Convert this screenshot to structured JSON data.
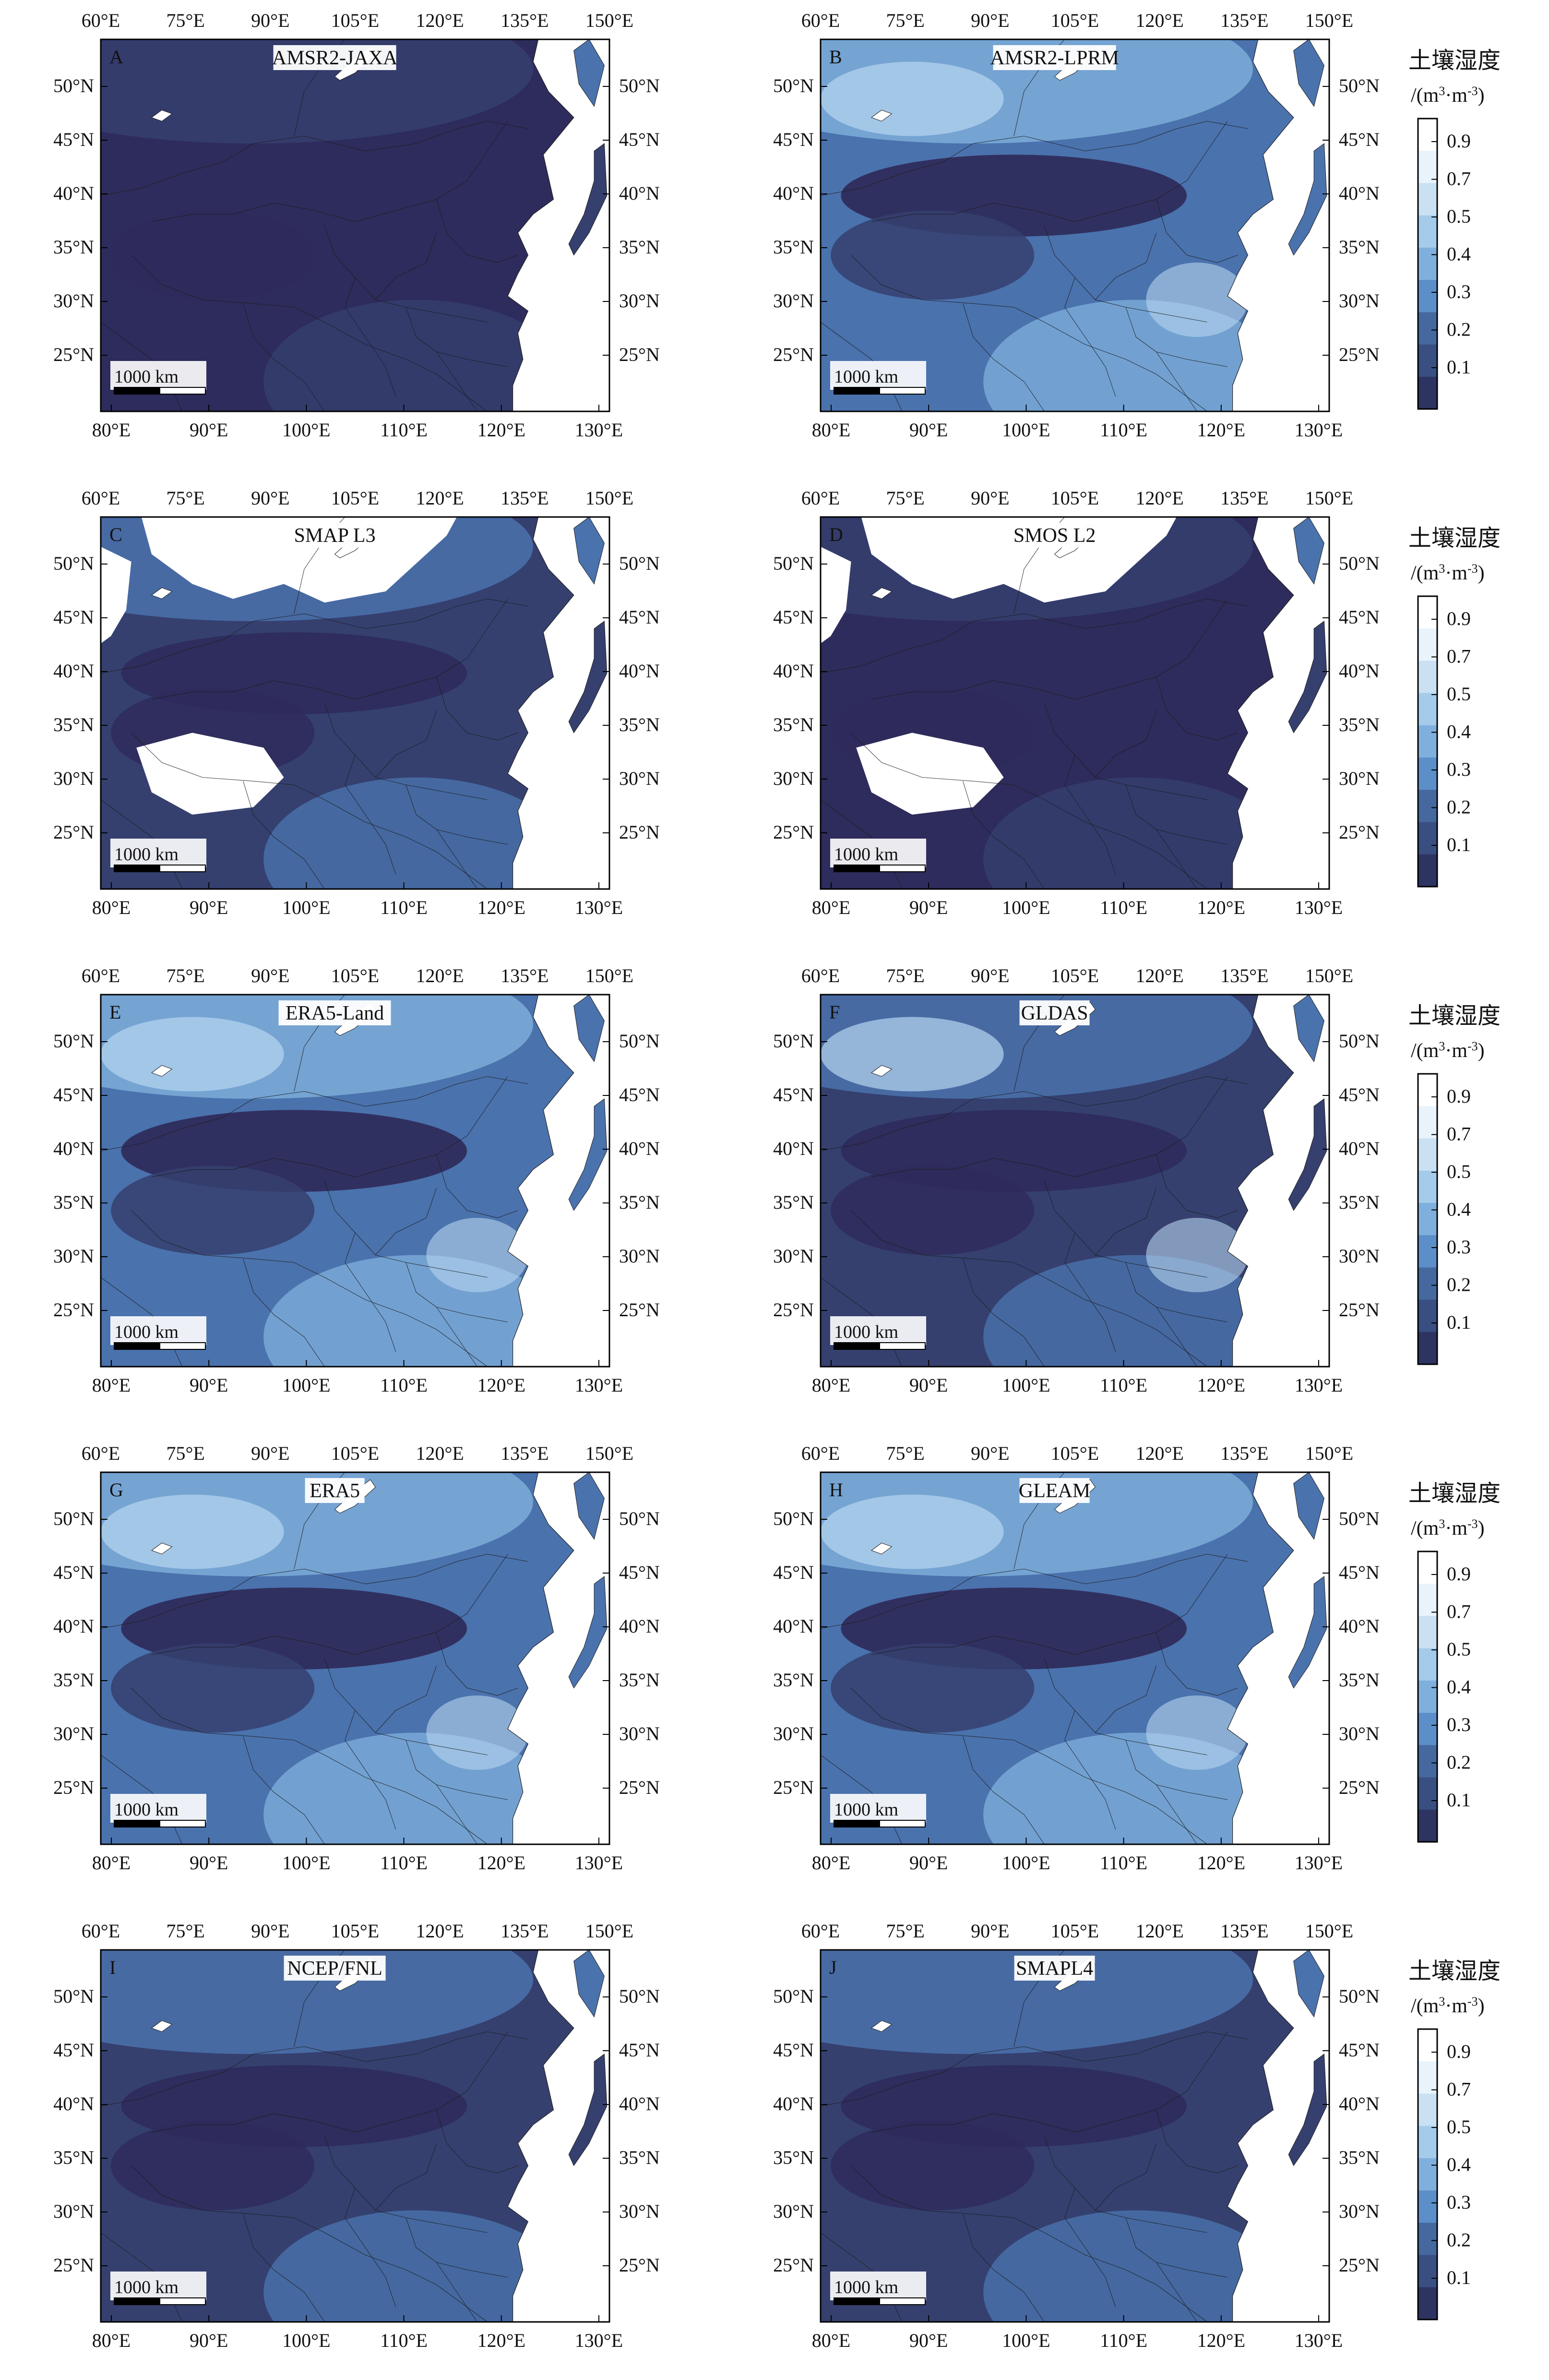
{
  "figure": {
    "top_lon_labels": [
      "60°E",
      "75°E",
      "90°E",
      "105°E",
      "120°E",
      "135°E",
      "150°E"
    ],
    "bottom_lon_labels": [
      "80°E",
      "90°E",
      "100°E",
      "110°E",
      "120°E",
      "130°E"
    ],
    "lat_labels": [
      "50°N",
      "45°N",
      "40°N",
      "35°N",
      "30°N",
      "25°N"
    ],
    "scale_bar_label": "1000 km",
    "colorbar": {
      "title_line1": "土壤湿度",
      "title_line2_prefix": "/(m",
      "title_line2_sup1": "3",
      "title_line2_mid": "·m",
      "title_line2_sup2": "-3",
      "title_line2_suffix": ")",
      "tick_labels": [
        "0.9",
        "0.7",
        "0.5",
        "0.4",
        "0.3",
        "0.2",
        "0.1"
      ],
      "colors": [
        "#ffffff",
        "#e8f3fb",
        "#c9e1f3",
        "#a4cbea",
        "#7fb0dd",
        "#5c8fc9",
        "#45699f",
        "#394f82",
        "#2e3462"
      ]
    },
    "land_colors": {
      "very_dry": "#2e2c5c",
      "dry": "#35406f",
      "medium": "#4a72ad",
      "moist": "#7cadd9",
      "wet": "#b7d6ef",
      "no_data": "#ffffff",
      "boundary": "#1c1c1c"
    }
  },
  "panels": [
    {
      "letter": "A",
      "title": "AMSR2-JAXA",
      "dryness": 0.95,
      "north_missing": false,
      "west_missing": false
    },
    {
      "letter": "B",
      "title": "AMSR2-LPRM",
      "dryness": 0.35,
      "north_missing": false,
      "west_missing": false
    },
    {
      "letter": "C",
      "title": "SMAP L3",
      "dryness": 0.8,
      "north_missing": true,
      "west_missing": true
    },
    {
      "letter": "D",
      "title": "SMOS L2",
      "dryness": 0.85,
      "north_missing": true,
      "west_missing": true
    },
    {
      "letter": "E",
      "title": "ERA5-Land",
      "dryness": 0.45,
      "north_missing": false,
      "west_missing": false
    },
    {
      "letter": "F",
      "title": "GLDAS",
      "dryness": 0.55,
      "north_missing": false,
      "west_missing": false
    },
    {
      "letter": "G",
      "title": "ERA5",
      "dryness": 0.5,
      "north_missing": false,
      "west_missing": false
    },
    {
      "letter": "H",
      "title": "GLEAM",
      "dryness": 0.5,
      "north_missing": false,
      "west_missing": false
    },
    {
      "letter": "I",
      "title": "NCEP/FNL",
      "dryness": 0.6,
      "north_missing": false,
      "west_missing": false
    },
    {
      "letter": "J",
      "title": "SMAPL4",
      "dryness": 0.7,
      "north_missing": false,
      "west_missing": false
    }
  ]
}
